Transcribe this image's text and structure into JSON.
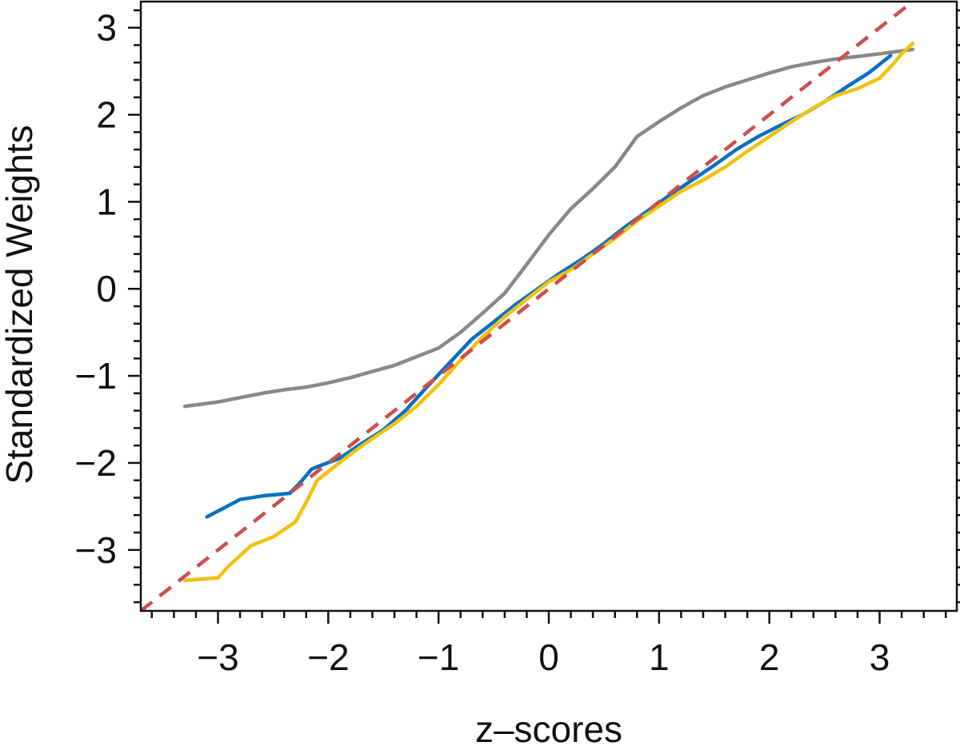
{
  "chart_data": {
    "type": "line",
    "title": "",
    "xlabel": "z–scores",
    "ylabel": "Standardized Weights",
    "xlim": [
      -3.7,
      3.7
    ],
    "ylim": [
      -3.7,
      3.3
    ],
    "x_major_ticks": [
      -3,
      -2,
      -1,
      0,
      1,
      2,
      3
    ],
    "x_tick_labels": [
      "−3",
      "−2",
      "−1",
      "0",
      "1",
      "2",
      "3"
    ],
    "y_major_ticks": [
      -3,
      -2,
      -1,
      0,
      1,
      2,
      3
    ],
    "y_tick_labels": [
      "−3",
      "−2",
      "−1",
      "0",
      "1",
      "2",
      "3"
    ],
    "minor_tick_step": 0.2,
    "grid": false,
    "legend": "none",
    "series": [
      {
        "color": "#888888",
        "x": [
          -3.3,
          -3.0,
          -2.8,
          -2.6,
          -2.4,
          -2.2,
          -2.0,
          -1.8,
          -1.6,
          -1.4,
          -1.2,
          -1.0,
          -0.8,
          -0.6,
          -0.4,
          -0.2,
          0.0,
          0.2,
          0.4,
          0.6,
          0.8,
          1.0,
          1.2,
          1.4,
          1.6,
          1.8,
          2.0,
          2.2,
          2.4,
          2.6,
          2.8,
          3.0,
          3.3
        ],
        "y": [
          -1.35,
          -1.3,
          -1.25,
          -1.2,
          -1.16,
          -1.13,
          -1.08,
          -1.02,
          -0.95,
          -0.88,
          -0.78,
          -0.68,
          -0.5,
          -0.28,
          -0.05,
          0.28,
          0.62,
          0.92,
          1.15,
          1.4,
          1.75,
          1.92,
          2.08,
          2.22,
          2.32,
          2.4,
          2.48,
          2.55,
          2.6,
          2.64,
          2.67,
          2.7,
          2.75
        ]
      },
      {
        "color": "#0a6fc2",
        "x": [
          -3.1,
          -2.8,
          -2.6,
          -2.35,
          -2.25,
          -2.15,
          -2.05,
          -1.9,
          -1.7,
          -1.5,
          -1.3,
          -1.1,
          -0.9,
          -0.7,
          -0.5,
          -0.3,
          -0.1,
          0.1,
          0.3,
          0.5,
          0.7,
          0.9,
          1.1,
          1.3,
          1.5,
          1.7,
          1.9,
          2.1,
          2.3,
          2.5,
          2.7,
          2.9,
          3.1
        ],
        "y": [
          -2.62,
          -2.42,
          -2.38,
          -2.35,
          -2.22,
          -2.07,
          -2.02,
          -1.95,
          -1.78,
          -1.62,
          -1.4,
          -1.12,
          -0.85,
          -0.58,
          -0.38,
          -0.18,
          0.0,
          0.18,
          0.34,
          0.52,
          0.72,
          0.9,
          1.08,
          1.25,
          1.42,
          1.6,
          1.75,
          1.88,
          2.0,
          2.15,
          2.32,
          2.48,
          2.68
        ]
      },
      {
        "color": "#f0c20c",
        "x": [
          -3.3,
          -3.0,
          -2.9,
          -2.7,
          -2.5,
          -2.3,
          -2.2,
          -2.1,
          -2.0,
          -1.8,
          -1.6,
          -1.4,
          -1.2,
          -1.0,
          -0.8,
          -0.6,
          -0.4,
          -0.2,
          0.0,
          0.2,
          0.4,
          0.6,
          0.8,
          1.0,
          1.2,
          1.4,
          1.6,
          1.8,
          2.0,
          2.2,
          2.4,
          2.6,
          2.8,
          3.0,
          3.1,
          3.2,
          3.3
        ],
        "y": [
          -3.35,
          -3.32,
          -3.18,
          -2.95,
          -2.85,
          -2.68,
          -2.45,
          -2.2,
          -2.1,
          -1.9,
          -1.72,
          -1.55,
          -1.35,
          -1.1,
          -0.82,
          -0.55,
          -0.32,
          -0.12,
          0.08,
          0.22,
          0.4,
          0.58,
          0.78,
          0.95,
          1.12,
          1.25,
          1.4,
          1.58,
          1.75,
          1.92,
          2.08,
          2.22,
          2.3,
          2.42,
          2.55,
          2.7,
          2.82
        ]
      },
      {
        "color": "#cc4f4f",
        "dashed": true,
        "x": [
          -3.7,
          3.3
        ],
        "y": [
          -3.7,
          3.3
        ]
      }
    ]
  }
}
